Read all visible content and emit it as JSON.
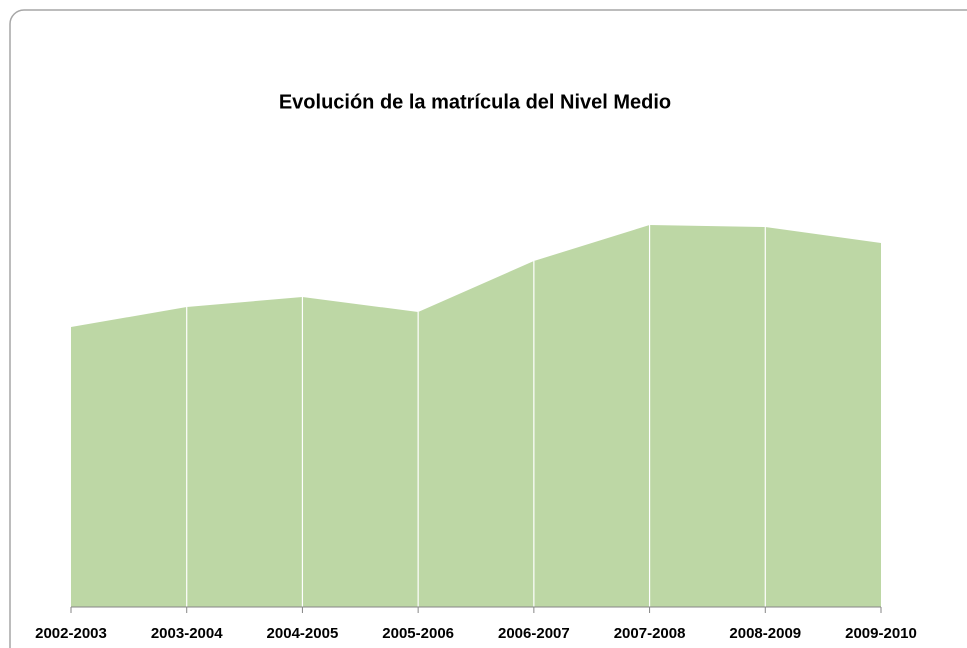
{
  "chart_data": {
    "type": "area",
    "title": "Evolución de la matrícula del Nivel Medio",
    "categories": [
      "2002-2003",
      "2003-2004",
      "2004-2005",
      "2005-2006",
      "2006-2007",
      "2007-2008",
      "2008-2009",
      "2009-2010"
    ],
    "values": [
      280,
      300,
      310,
      295,
      346,
      382,
      380,
      364
    ],
    "color": "#bdd7a5",
    "ylim": [
      0,
      400
    ]
  }
}
